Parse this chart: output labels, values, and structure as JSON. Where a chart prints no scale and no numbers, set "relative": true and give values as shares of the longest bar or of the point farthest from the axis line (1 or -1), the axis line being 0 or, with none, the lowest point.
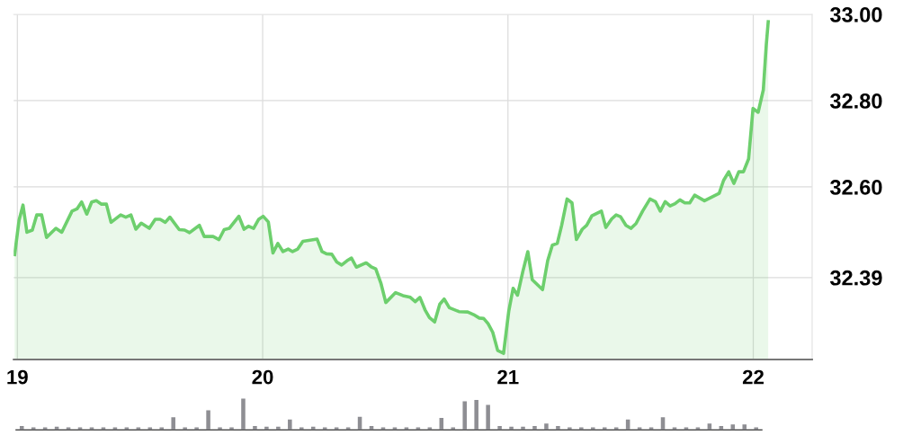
{
  "chart_data": [
    {
      "type": "area",
      "color": "#6dcf6d",
      "xlim": [
        18.985,
        22.24
      ],
      "ylim": [
        32.2,
        33.0
      ],
      "xticks": [
        19,
        20,
        21,
        22
      ],
      "yticks": [
        {
          "value": 33.0,
          "label": "33.00"
        },
        {
          "value": 32.8,
          "label": "32.80"
        },
        {
          "value": 32.6,
          "label": "32.60"
        },
        32.39
      ],
      "grid": true,
      "marker": "none",
      "line_style": "solid",
      "x": [
        18.989,
        19.007,
        19.023,
        19.039,
        19.061,
        19.079,
        19.099,
        19.119,
        19.157,
        19.181,
        19.223,
        19.243,
        19.262,
        19.283,
        19.303,
        19.322,
        19.343,
        19.363,
        19.382,
        19.421,
        19.442,
        19.463,
        19.483,
        19.505,
        19.538,
        19.562,
        19.582,
        19.603,
        19.622,
        19.66,
        19.682,
        19.702,
        19.742,
        19.762,
        19.798,
        19.822,
        19.843,
        19.864,
        19.903,
        19.924,
        19.942,
        19.963,
        19.984,
        20.002,
        20.023,
        20.042,
        20.062,
        20.083,
        20.104,
        20.122,
        20.143,
        20.164,
        20.222,
        20.242,
        20.26,
        20.282,
        20.302,
        20.322,
        20.344,
        20.362,
        20.382,
        20.422,
        20.442,
        20.461,
        20.482,
        20.502,
        20.542,
        20.572,
        20.602,
        20.622,
        20.641,
        20.662,
        20.68,
        20.701,
        20.722,
        20.74,
        20.761,
        20.8,
        20.836,
        20.86,
        20.883,
        20.901,
        20.919,
        20.938,
        20.958,
        20.982,
        21.003,
        21.021,
        21.039,
        21.061,
        21.081,
        21.099,
        21.141,
        21.162,
        21.181,
        21.201,
        21.219,
        21.241,
        21.261,
        21.279,
        21.303,
        21.321,
        21.342,
        21.381,
        21.399,
        21.423,
        21.441,
        21.459,
        21.481,
        21.501,
        21.522,
        21.549,
        21.579,
        21.601,
        21.621,
        21.641,
        21.661,
        21.681,
        21.701,
        21.721,
        21.741,
        21.761,
        21.801,
        21.861,
        21.879,
        21.9,
        21.921,
        21.941,
        21.96,
        21.981,
        21.999,
        22.02,
        22.041,
        22.053,
        22.061
      ],
      "values": [
        32.443,
        32.523,
        32.558,
        32.495,
        32.5,
        32.535,
        32.535,
        32.483,
        32.504,
        32.495,
        32.544,
        32.549,
        32.565,
        32.537,
        32.565,
        32.568,
        32.56,
        32.56,
        32.518,
        32.535,
        32.53,
        32.535,
        32.502,
        32.516,
        32.504,
        32.525,
        32.525,
        32.518,
        32.53,
        32.501,
        32.5,
        32.494,
        32.511,
        32.485,
        32.485,
        32.478,
        32.501,
        32.504,
        32.532,
        32.502,
        32.509,
        32.504,
        32.525,
        32.532,
        32.519,
        32.447,
        32.469,
        32.45,
        32.456,
        32.45,
        32.456,
        32.474,
        32.479,
        32.45,
        32.445,
        32.444,
        32.426,
        32.419,
        32.429,
        32.435,
        32.414,
        32.424,
        32.415,
        32.41,
        32.377,
        32.332,
        32.355,
        32.348,
        32.344,
        32.334,
        32.344,
        32.315,
        32.297,
        32.287,
        32.328,
        32.34,
        32.32,
        32.311,
        32.31,
        32.304,
        32.296,
        32.295,
        32.283,
        32.263,
        32.221,
        32.214,
        32.311,
        32.365,
        32.349,
        32.405,
        32.45,
        32.385,
        32.362,
        32.429,
        32.465,
        32.469,
        32.511,
        32.572,
        32.563,
        32.478,
        32.502,
        32.511,
        32.533,
        32.544,
        32.506,
        32.526,
        32.535,
        32.531,
        32.511,
        32.504,
        32.515,
        32.544,
        32.572,
        32.566,
        32.544,
        32.566,
        32.556,
        32.561,
        32.57,
        32.563,
        32.563,
        32.581,
        32.568,
        32.585,
        32.615,
        32.635,
        32.608,
        32.635,
        32.635,
        32.665,
        32.782,
        32.773,
        32.825,
        32.929,
        32.983
      ]
    },
    {
      "type": "bar",
      "relative": true,
      "color": "#8e8e93",
      "categories": [
        null,
        null,
        null,
        null,
        null,
        null,
        null,
        null,
        null,
        null,
        null,
        null,
        null,
        null,
        null,
        null,
        null,
        null,
        null,
        null,
        null,
        null,
        null,
        null,
        null,
        null,
        null,
        null,
        null,
        null,
        null,
        null,
        null,
        null,
        null,
        null,
        null,
        null,
        null,
        null,
        null,
        null,
        null,
        null,
        null,
        null,
        null,
        null,
        null,
        null,
        null,
        null,
        null,
        null,
        null,
        null,
        null,
        null,
        null,
        null,
        null,
        null,
        null,
        null
      ],
      "values": [
        0.12,
        0.08,
        0.08,
        0.1,
        0.08,
        0.08,
        0.08,
        0.08,
        0.08,
        0.08,
        0.08,
        0.08,
        0.08,
        0.4,
        0.08,
        0.08,
        0.63,
        0.08,
        0.08,
        1.0,
        0.12,
        0.1,
        0.1,
        0.33,
        0.08,
        0.1,
        0.08,
        0.08,
        0.08,
        0.42,
        0.12,
        0.08,
        0.08,
        0.08,
        0.08,
        0.08,
        0.38,
        0.08,
        0.92,
        0.96,
        0.8,
        0.12,
        0.1,
        0.1,
        0.12,
        0.2,
        0.12,
        0.08,
        0.08,
        0.08,
        0.08,
        0.08,
        0.33,
        0.08,
        0.08,
        0.4,
        0.08,
        0.08,
        0.08,
        0.2,
        0.12,
        0.17,
        0.17,
        0.08
      ]
    }
  ]
}
